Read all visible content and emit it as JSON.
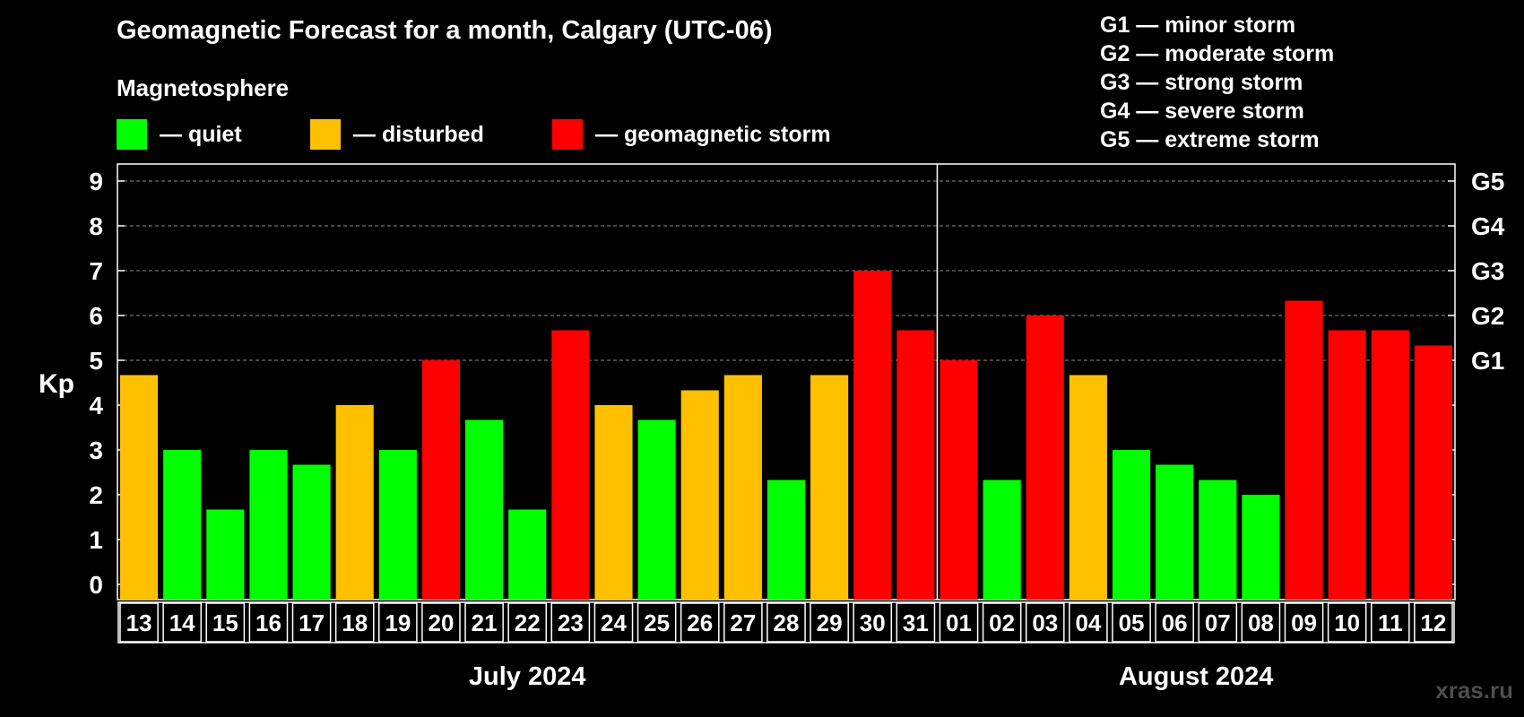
{
  "title": "Geomagnetic Forecast for a month, Calgary (UTC-06)",
  "subtitle": "Magnetosphere",
  "legend": [
    {
      "label": "— quiet",
      "color": "#00ff00"
    },
    {
      "label": "— disturbed",
      "color": "#ffc000"
    },
    {
      "label": "— geomagnetic storm",
      "color": "#ff0000"
    }
  ],
  "storm_scale": [
    "G1 — minor storm",
    "G2 — moderate storm",
    "G3 — strong storm",
    "G4 — severe storm",
    "G5 — extreme storm"
  ],
  "watermark": "xras.ru",
  "chart_data": {
    "type": "bar",
    "ylabel": "Kp",
    "ylim": [
      0,
      9
    ],
    "yticks": [
      0,
      1,
      2,
      3,
      4,
      5,
      6,
      7,
      8,
      9
    ],
    "right_axis": [
      {
        "value": 5,
        "label": "G1"
      },
      {
        "value": 6,
        "label": "G2"
      },
      {
        "value": 7,
        "label": "G3"
      },
      {
        "value": 8,
        "label": "G4"
      },
      {
        "value": 9,
        "label": "G5"
      }
    ],
    "grid": "dashed horizontal at 5–9",
    "months": [
      {
        "label": "July 2024",
        "categories": [
          "13",
          "14",
          "15",
          "16",
          "17",
          "18",
          "19",
          "20",
          "21",
          "22",
          "23",
          "24",
          "25",
          "26",
          "27",
          "28",
          "29",
          "30",
          "31"
        ]
      },
      {
        "label": "August 2024",
        "categories": [
          "01",
          "02",
          "03",
          "04",
          "05",
          "06",
          "07",
          "08",
          "09",
          "10",
          "11",
          "12"
        ]
      }
    ],
    "categories": [
      "13",
      "14",
      "15",
      "16",
      "17",
      "18",
      "19",
      "20",
      "21",
      "22",
      "23",
      "24",
      "25",
      "26",
      "27",
      "28",
      "29",
      "30",
      "31",
      "01",
      "02",
      "03",
      "04",
      "05",
      "06",
      "07",
      "08",
      "09",
      "10",
      "11",
      "12"
    ],
    "values": [
      4.67,
      3.0,
      1.67,
      3.0,
      2.67,
      4.0,
      3.0,
      5.0,
      3.67,
      1.67,
      5.67,
      4.0,
      3.67,
      4.33,
      4.67,
      2.33,
      4.67,
      7.0,
      5.67,
      5.0,
      2.33,
      6.0,
      4.67,
      3.0,
      2.67,
      2.33,
      2.0,
      6.33,
      5.67,
      5.67,
      5.33
    ],
    "status": [
      "disturbed",
      "quiet",
      "quiet",
      "quiet",
      "quiet",
      "disturbed",
      "quiet",
      "storm",
      "quiet",
      "quiet",
      "storm",
      "disturbed",
      "quiet",
      "disturbed",
      "disturbed",
      "quiet",
      "disturbed",
      "storm",
      "storm",
      "storm",
      "quiet",
      "storm",
      "disturbed",
      "quiet",
      "quiet",
      "quiet",
      "quiet",
      "storm",
      "storm",
      "storm",
      "storm"
    ],
    "colors": {
      "quiet": "#00ff00",
      "disturbed": "#ffc000",
      "storm": "#ff0000"
    }
  }
}
